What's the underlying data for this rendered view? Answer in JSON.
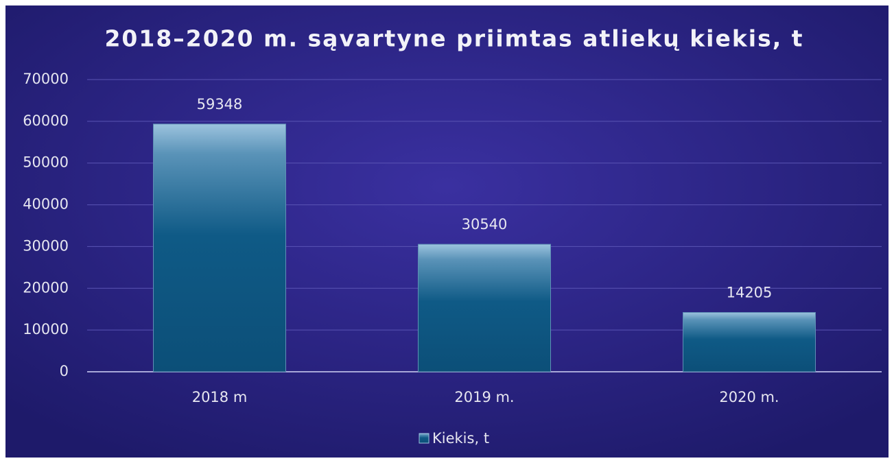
{
  "chart_data": {
    "type": "bar",
    "title": "2018–2020 m. sąvartyne priimtas atliekų kiekis, t",
    "categories": [
      "2018 m",
      "2019 m.",
      "2020 m."
    ],
    "series": [
      {
        "name": "Kiekis, t",
        "color": "#0f5a86",
        "values": [
          59348,
          30540,
          14205
        ]
      }
    ],
    "ylim": [
      0,
      70000
    ],
    "yticks": [
      0,
      10000,
      20000,
      30000,
      40000,
      50000,
      60000,
      70000
    ],
    "grid": true,
    "legend": "bottom"
  }
}
